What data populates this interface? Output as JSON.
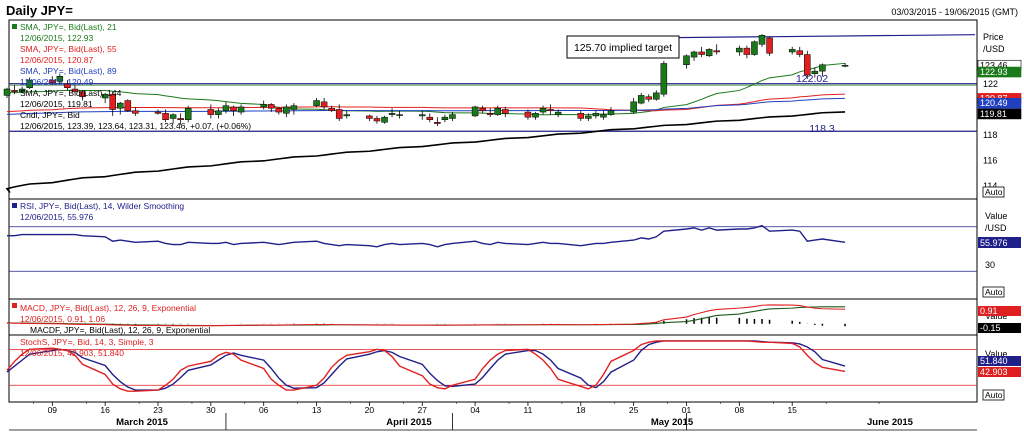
{
  "header": {
    "title": "Daily JPY=",
    "date_range": "03/03/2015 - 19/06/2015 (GMT)"
  },
  "price_panel": {
    "legend": [
      {
        "label": "SMA, JPY=, Bid(Last), 21",
        "value_line": "12/06/2015, 122.93",
        "color": "#1a7a1a"
      },
      {
        "label": "SMA, JPY=, Bid(Last), 55",
        "value_line": "12/06/2015, 120.87",
        "color": "#e02020"
      },
      {
        "label": "SMA, JPY=, Bid(Last), 89",
        "value_line": "12/06/2015, 120.49",
        "color": "#2040c0"
      },
      {
        "label": "SMA, JPY=, Bid(Last), 144",
        "value_line": "12/06/2015, 119.81",
        "color": "#000000"
      },
      {
        "label": "Cndl, JPY=, Bid",
        "value_line": "12/06/2015, 123.39, 123.64, 123.31, 123.46, +0.07, (+0.06%)",
        "color": "#000000"
      }
    ],
    "annotation": "125.70 implied target",
    "level_labels": [
      "122.02",
      "118.3"
    ],
    "axis_title": "Price",
    "axis_unit": "/USD",
    "ticks": [
      "122",
      "120",
      "118",
      "116",
      "114"
    ],
    "tags": [
      {
        "text": "123.46",
        "bg": "#ffffff",
        "fg": "#000000"
      },
      {
        "text": "122.93",
        "bg": "#1a7a1a",
        "fg": "#ffffff"
      },
      {
        "text": "120.87",
        "bg": "#e02020",
        "fg": "#ffffff"
      },
      {
        "text": "120.49",
        "bg": "#2040c0",
        "fg": "#ffffff"
      },
      {
        "text": "119.81",
        "bg": "#000000",
        "fg": "#ffffff"
      }
    ],
    "auto": "Auto"
  },
  "rsi_panel": {
    "legend": "RSI, JPY=, Bid(Last), 14, Wilder Smoothing",
    "value_line": "12/06/2015, 55.976",
    "axis_title": "Value",
    "axis_unit": "/USD",
    "tick": "30",
    "tag": "55.976",
    "auto": "Auto"
  },
  "macd_panel": {
    "legend1": "MACD, JPY=, Bid(Last), 12, 26, 9, Exponential",
    "value_line": "12/06/2015, 0.91, 1.06",
    "legend2": "MACDF, JPY=, Bid(Last), 12, 26, 9, Exponential",
    "axis_title": "Value",
    "tag1": "0.91",
    "tag2": "-0.15"
  },
  "stoch_panel": {
    "legend": "StochS, JPY=, Bid, 14, 3, Simple, 3",
    "value_line": "12/06/2015, 42.903, 51.840",
    "axis_title": "Value",
    "tag1": "51.840",
    "tag2": "42.903",
    "auto": "Auto"
  },
  "xaxis": {
    "days": [
      "09",
      "16",
      "23",
      "30",
      "06",
      "13",
      "20",
      "27",
      "04",
      "11",
      "18",
      "25",
      "01",
      "08",
      "15"
    ],
    "months": [
      "March 2015",
      "April 2015",
      "May 2015",
      "June 2015"
    ]
  },
  "colors": {
    "up": "#1a7a1a",
    "down": "#e02020",
    "rsi": "#20208a",
    "level": "#20208a"
  },
  "chart_data": {
    "type": "line",
    "title": "Daily JPY=",
    "x_range": [
      "2015-03-03",
      "2015-06-19"
    ],
    "y_range": [
      113,
      127
    ],
    "candles": [
      [
        121.1,
        121.7,
        120.9,
        121.6
      ],
      [
        121.5,
        121.9,
        121.2,
        121.4
      ],
      [
        121.4,
        121.8,
        121.3,
        121.6
      ],
      [
        121.7,
        122.5,
        121.6,
        122.3
      ],
      [
        122.3,
        122.6,
        121.9,
        122.1
      ],
      [
        122.2,
        122.8,
        122.0,
        122.6
      ],
      [
        122.0,
        122.3,
        121.5,
        121.7
      ],
      [
        121.6,
        121.9,
        121.3,
        121.4
      ],
      [
        121.4,
        121.5,
        120.7,
        121.0
      ],
      [
        120.9,
        121.3,
        120.5,
        121.2
      ],
      [
        121.2,
        121.4,
        119.5,
        120.0
      ],
      [
        120.1,
        120.6,
        119.6,
        120.5
      ],
      [
        120.7,
        120.8,
        119.8,
        119.9
      ],
      [
        119.9,
        120.2,
        119.5,
        119.7
      ],
      [
        119.8,
        120.0,
        119.6,
        119.7
      ],
      [
        119.7,
        120.0,
        119.0,
        119.2
      ],
      [
        119.3,
        119.7,
        118.9,
        119.6
      ],
      [
        119.3,
        119.7,
        118.8,
        119.2
      ],
      [
        119.2,
        120.3,
        119.0,
        120.1
      ],
      [
        120.0,
        120.4,
        119.3,
        119.6
      ],
      [
        119.6,
        120.1,
        119.3,
        119.9
      ],
      [
        119.9,
        120.6,
        119.7,
        120.3
      ],
      [
        120.2,
        120.3,
        119.5,
        119.9
      ],
      [
        119.8,
        120.4,
        119.6,
        120.2
      ],
      [
        120.2,
        120.7,
        120.0,
        120.4
      ],
      [
        120.4,
        120.5,
        119.8,
        120.1
      ],
      [
        120.1,
        120.2,
        119.6,
        119.8
      ],
      [
        119.7,
        120.4,
        119.4,
        120.2
      ],
      [
        120.0,
        120.5,
        119.6,
        120.3
      ],
      [
        120.3,
        120.9,
        120.2,
        120.7
      ],
      [
        120.6,
        120.9,
        120.0,
        120.2
      ],
      [
        120.1,
        120.3,
        119.8,
        119.9
      ],
      [
        120.0,
        120.4,
        119.1,
        119.3
      ],
      [
        119.5,
        119.9,
        119.3,
        119.6
      ],
      [
        119.5,
        119.6,
        119.1,
        119.3
      ],
      [
        119.3,
        119.5,
        118.9,
        119.1
      ],
      [
        119.0,
        119.5,
        118.9,
        119.4
      ],
      [
        119.6,
        120.1,
        119.4,
        119.7
      ],
      [
        119.6,
        119.9,
        119.3,
        119.6
      ],
      [
        119.5,
        119.9,
        119.2,
        119.6
      ],
      [
        119.4,
        119.7,
        119.0,
        119.2
      ],
      [
        119.0,
        119.4,
        118.7,
        118.9
      ],
      [
        119.2,
        119.6,
        119.0,
        119.4
      ],
      [
        119.3,
        119.8,
        119.1,
        119.6
      ],
      [
        119.5,
        120.3,
        119.4,
        120.2
      ],
      [
        120.1,
        120.3,
        119.7,
        119.9
      ],
      [
        119.7,
        120.1,
        119.4,
        119.6
      ],
      [
        119.6,
        120.3,
        119.5,
        120.1
      ],
      [
        120.0,
        120.2,
        119.4,
        119.7
      ],
      [
        119.8,
        120.0,
        119.2,
        119.4
      ],
      [
        119.4,
        119.8,
        119.2,
        119.7
      ],
      [
        119.8,
        120.3,
        119.6,
        120.1
      ],
      [
        120.0,
        120.4,
        119.6,
        119.9
      ],
      [
        119.6,
        120.0,
        119.4,
        119.8
      ],
      [
        119.7,
        119.9,
        119.1,
        119.3
      ],
      [
        119.3,
        119.7,
        119.1,
        119.5
      ],
      [
        119.5,
        119.9,
        119.3,
        119.7
      ],
      [
        119.4,
        119.9,
        119.2,
        119.6
      ],
      [
        119.6,
        120.2,
        119.5,
        119.9
      ],
      [
        119.8,
        120.9,
        119.7,
        120.6
      ],
      [
        120.5,
        121.3,
        120.4,
        121.1
      ],
      [
        121.0,
        121.2,
        120.6,
        120.8
      ],
      [
        120.8,
        121.5,
        120.7,
        121.3
      ],
      [
        121.2,
        123.8,
        121.0,
        123.6
      ],
      [
        123.5,
        124.3,
        123.2,
        124.2
      ],
      [
        124.1,
        124.6,
        123.8,
        124.5
      ],
      [
        124.5,
        124.9,
        124.1,
        124.3
      ],
      [
        124.2,
        124.8,
        124.1,
        124.7
      ],
      [
        124.6,
        125.1,
        124.3,
        124.5
      ],
      [
        124.5,
        125.0,
        124.2,
        124.8
      ],
      [
        124.8,
        125.0,
        124.0,
        124.3
      ],
      [
        124.3,
        125.4,
        124.2,
        125.3
      ],
      [
        125.1,
        125.9,
        124.9,
        125.8
      ],
      [
        125.6,
        125.7,
        124.2,
        124.4
      ],
      [
        124.5,
        124.9,
        124.3,
        124.7
      ],
      [
        124.6,
        124.9,
        124.1,
        124.3
      ],
      [
        124.3,
        124.6,
        122.4,
        122.7
      ],
      [
        122.8,
        123.3,
        122.5,
        123.0
      ],
      [
        123.0,
        123.6,
        122.6,
        123.5
      ],
      [
        123.39,
        123.64,
        123.31,
        123.46
      ]
    ],
    "series": [
      {
        "name": "SMA, JPY=, Bid(Last), 21",
        "last": 122.93
      },
      {
        "name": "SMA, JPY=, Bid(Last), 55",
        "last": 120.87
      },
      {
        "name": "SMA, JPY=, Bid(Last), 89",
        "last": 120.49
      },
      {
        "name": "SMA, JPY=, Bid(Last), 144",
        "last": 119.81
      },
      {
        "name": "RSI, JPY=, Bid(Last), 14, Wilder Smoothing",
        "last": 55.976
      },
      {
        "name": "MACD, JPY=, Bid(Last), 12, 26, 9, Exponential",
        "last": 0.91
      },
      {
        "name": "StochS, JPY=, Bid, 14, 3, Simple, 3",
        "last_k": 42.903,
        "last_d": 51.84
      }
    ],
    "levels": [
      122.02,
      118.3
    ],
    "rsi_values": [
      62,
      62,
      63,
      63,
      63,
      63,
      63,
      63,
      62,
      61,
      57,
      58,
      57,
      56,
      57,
      55,
      54,
      54,
      56,
      55,
      55,
      56,
      54,
      55,
      56,
      55,
      54,
      55,
      56,
      57,
      55,
      54,
      53,
      54,
      53,
      52,
      54,
      55,
      54,
      55,
      54,
      52,
      54,
      55,
      57,
      55,
      54,
      56,
      55,
      54,
      55,
      56,
      55,
      55,
      53,
      54,
      55,
      55,
      56,
      58,
      60,
      59,
      61,
      66,
      68,
      69,
      67,
      69,
      67,
      68,
      68,
      69,
      71,
      66,
      67,
      66,
      57,
      58,
      59,
      56
    ],
    "macd_values": [
      0.05,
      0.04,
      0.03,
      0.02,
      0.01,
      0.0,
      -0.02,
      -0.03,
      -0.04,
      -0.05,
      -0.07,
      -0.08,
      -0.09,
      -0.1,
      -0.1,
      -0.11,
      -0.12,
      -0.12,
      -0.12,
      -0.12,
      -0.11,
      -0.1,
      -0.1,
      -0.09,
      -0.08,
      -0.08,
      -0.08,
      -0.07,
      -0.06,
      -0.05,
      -0.05,
      -0.05,
      -0.06,
      -0.06,
      -0.07,
      -0.08,
      -0.08,
      -0.08,
      -0.08,
      -0.08,
      -0.08,
      -0.09,
      -0.09,
      -0.08,
      -0.07,
      -0.07,
      -0.07,
      -0.06,
      -0.06,
      -0.06,
      -0.06,
      -0.05,
      -0.05,
      -0.05,
      -0.06,
      -0.06,
      -0.05,
      -0.05,
      -0.04,
      -0.02,
      0.02,
      0.05,
      0.1,
      0.25,
      0.42,
      0.58,
      0.7,
      0.82,
      0.9,
      0.98,
      1.02,
      1.08,
      1.16,
      1.18,
      1.17,
      1.14,
      1.05,
      0.98,
      0.94,
      0.91
    ],
    "signal_values": [
      0.06,
      0.05,
      0.05,
      0.04,
      0.03,
      0.02,
      0.01,
      0.0,
      -0.01,
      -0.02,
      -0.03,
      -0.05,
      -0.06,
      -0.07,
      -0.08,
      -0.09,
      -0.09,
      -0.1,
      -0.1,
      -0.11,
      -0.11,
      -0.11,
      -0.1,
      -0.1,
      -0.09,
      -0.09,
      -0.09,
      -0.08,
      -0.08,
      -0.07,
      -0.07,
      -0.06,
      -0.06,
      -0.06,
      -0.07,
      -0.07,
      -0.07,
      -0.07,
      -0.08,
      -0.08,
      -0.08,
      -0.08,
      -0.08,
      -0.08,
      -0.08,
      -0.07,
      -0.07,
      -0.07,
      -0.07,
      -0.06,
      -0.06,
      -0.06,
      -0.06,
      -0.06,
      -0.06,
      -0.06,
      -0.06,
      -0.05,
      -0.05,
      -0.04,
      -0.03,
      -0.01,
      0.02,
      0.07,
      0.14,
      0.22,
      0.32,
      0.42,
      0.52,
      0.61,
      0.7,
      0.78,
      0.86,
      0.93,
      0.98,
      1.02,
      1.04,
      1.05,
      1.06,
      1.06
    ],
    "stoch_k": [
      45,
      60,
      72,
      80,
      82,
      80,
      78,
      70,
      55,
      38,
      22,
      14,
      10,
      10,
      12,
      20,
      30,
      45,
      52,
      60,
      70,
      75,
      72,
      62,
      48,
      30,
      20,
      12,
      12,
      20,
      32,
      50,
      62,
      70,
      76,
      80,
      78,
      68,
      52,
      36,
      22,
      16,
      14,
      20,
      30,
      48,
      62,
      72,
      78,
      80,
      72,
      62,
      48,
      30,
      18,
      14,
      20,
      38,
      60,
      78,
      88,
      92,
      94,
      94,
      94,
      94,
      94,
      94,
      94,
      94,
      94,
      93,
      92,
      92,
      90,
      84,
      70,
      58,
      50,
      43
    ],
    "stoch_d": [
      42,
      52,
      62,
      72,
      78,
      80,
      78,
      75,
      66,
      53,
      38,
      26,
      17,
      12,
      12,
      15,
      22,
      33,
      45,
      54,
      62,
      70,
      74,
      70,
      62,
      48,
      32,
      20,
      15,
      16,
      24,
      38,
      52,
      64,
      72,
      76,
      78,
      75,
      68,
      55,
      40,
      28,
      19,
      18,
      22,
      33,
      48,
      62,
      72,
      78,
      78,
      72,
      62,
      48,
      32,
      20,
      16,
      26,
      42,
      62,
      78,
      88,
      92,
      94,
      94,
      94,
      94,
      94,
      94,
      94,
      94,
      94,
      93,
      92,
      91,
      89,
      84,
      76,
      63,
      52
    ]
  }
}
